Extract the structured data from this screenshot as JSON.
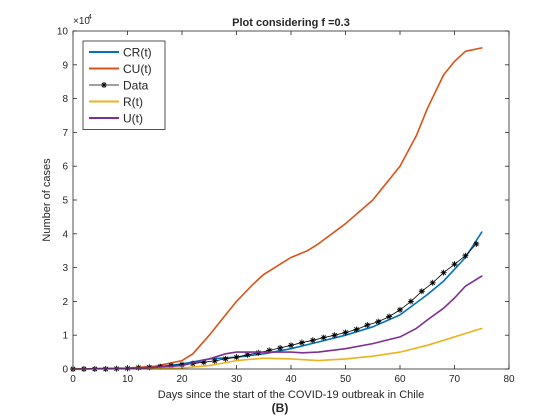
{
  "chart_data": {
    "type": "line",
    "title": "Plot considering f =0.3",
    "xlabel": "Days since the start of the COVID-19 outbreak in Chile",
    "ylabel": "Number of cases",
    "caption": "(B)",
    "y_exponent_label": "×10",
    "y_exponent_power": "4",
    "xlim": [
      0,
      80
    ],
    "ylim": [
      0,
      10
    ],
    "x_ticks": [
      0,
      10,
      20,
      30,
      40,
      50,
      60,
      70,
      80
    ],
    "y_ticks": [
      0,
      1,
      2,
      3,
      4,
      5,
      6,
      7,
      8,
      9,
      10
    ],
    "y_unit_multiplier": 10000,
    "grid": false,
    "legend_position": "top-left",
    "series": [
      {
        "name": "CR(t)",
        "color": "#0072BD",
        "style": "line",
        "x": [
          0,
          10,
          15,
          20,
          25,
          30,
          35,
          40,
          45,
          50,
          55,
          60,
          65,
          68,
          70,
          72,
          75
        ],
        "y": [
          0.0,
          0.02,
          0.05,
          0.15,
          0.3,
          0.35,
          0.45,
          0.6,
          0.8,
          1.0,
          1.25,
          1.6,
          2.2,
          2.6,
          2.95,
          3.3,
          4.05
        ]
      },
      {
        "name": "CU(t)",
        "color": "#D95319",
        "style": "line",
        "x": [
          0,
          10,
          15,
          20,
          22,
          25,
          28,
          30,
          33,
          35,
          38,
          40,
          43,
          45,
          50,
          55,
          60,
          63,
          65,
          68,
          70,
          72,
          75
        ],
        "y": [
          0.0,
          0.03,
          0.08,
          0.25,
          0.45,
          1.0,
          1.6,
          2.0,
          2.5,
          2.8,
          3.1,
          3.3,
          3.5,
          3.7,
          4.3,
          5.0,
          6.0,
          6.9,
          7.7,
          8.7,
          9.1,
          9.4,
          9.5
        ]
      },
      {
        "name": "Data",
        "color": "#000000",
        "style": "markers-line",
        "marker": "*",
        "x": [
          0,
          2,
          4,
          6,
          8,
          10,
          12,
          14,
          16,
          18,
          20,
          22,
          24,
          26,
          28,
          30,
          32,
          34,
          36,
          38,
          40,
          42,
          44,
          46,
          48,
          50,
          52,
          54,
          56,
          58,
          60,
          62,
          64,
          66,
          68,
          70,
          72,
          74
        ],
        "y": [
          0.0,
          0.0,
          0.0,
          0.0,
          0.01,
          0.02,
          0.04,
          0.05,
          0.07,
          0.1,
          0.13,
          0.16,
          0.2,
          0.24,
          0.3,
          0.35,
          0.42,
          0.48,
          0.55,
          0.62,
          0.7,
          0.78,
          0.85,
          0.93,
          1.0,
          1.08,
          1.17,
          1.3,
          1.4,
          1.55,
          1.75,
          2.0,
          2.3,
          2.55,
          2.85,
          3.1,
          3.35,
          3.7
        ]
      },
      {
        "name": "R(t)",
        "color": "#EDB120",
        "style": "line",
        "x": [
          0,
          10,
          15,
          20,
          25,
          30,
          35,
          40,
          45,
          50,
          55,
          60,
          65,
          68,
          70,
          72,
          75
        ],
        "y": [
          0.0,
          0.01,
          0.02,
          0.03,
          0.1,
          0.25,
          0.32,
          0.3,
          0.25,
          0.3,
          0.38,
          0.5,
          0.7,
          0.85,
          0.95,
          1.05,
          1.2
        ]
      },
      {
        "name": "U(t)",
        "color": "#7E2F8E",
        "style": "line",
        "x": [
          0,
          10,
          15,
          20,
          25,
          28,
          30,
          33,
          35,
          38,
          40,
          42,
          45,
          50,
          55,
          60,
          63,
          65,
          68,
          70,
          72,
          75
        ],
        "y": [
          0.0,
          0.02,
          0.05,
          0.1,
          0.3,
          0.45,
          0.5,
          0.5,
          0.5,
          0.5,
          0.5,
          0.48,
          0.5,
          0.6,
          0.75,
          0.95,
          1.2,
          1.45,
          1.8,
          2.1,
          2.45,
          2.75
        ]
      }
    ]
  }
}
